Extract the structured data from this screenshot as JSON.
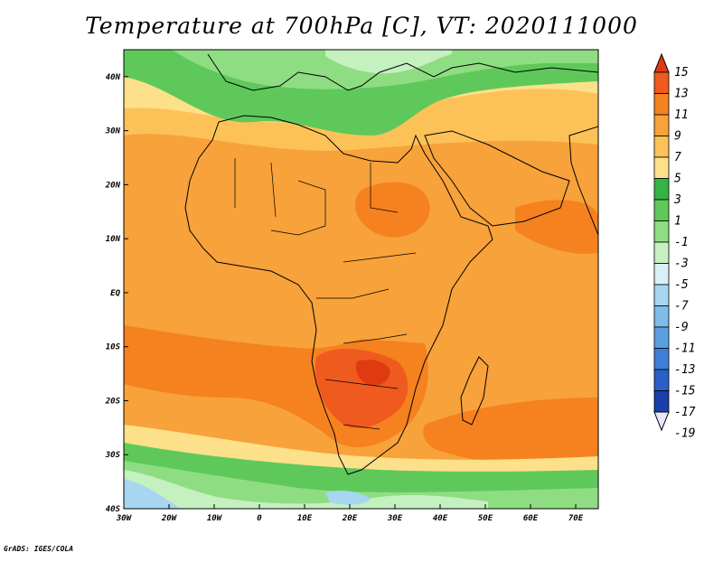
{
  "title": "Temperature at 700hPa [C], VT: 2020111000",
  "credit": "GrADS: IGES/COLA",
  "map": {
    "lat_ticks": [
      "40N",
      "30N",
      "20N",
      "10N",
      "EQ",
      "10S",
      "20S",
      "30S",
      "40S"
    ],
    "lon_ticks": [
      "30W",
      "20W",
      "10W",
      "0",
      "10E",
      "20E",
      "30E",
      "40E",
      "50E",
      "60E",
      "70E"
    ],
    "lat_range": [
      -40,
      45
    ],
    "lon_range": [
      -30,
      75
    ],
    "base_color": "#f7a23a"
  },
  "colorbar": {
    "labels": [
      "15",
      "13",
      "11",
      "9",
      "7",
      "5",
      "3",
      "1",
      "-1",
      "-3",
      "-5",
      "-7",
      "-9",
      "-11",
      "-13",
      "-15",
      "-17",
      "-19"
    ],
    "colors": [
      "#e03a12",
      "#ef5a1e",
      "#f5821f",
      "#f7a23a",
      "#fcc258",
      "#fde08a",
      "#35b345",
      "#5ec95a",
      "#8fdd82",
      "#c5f0c0",
      "#d8f0f6",
      "#a8d6f0",
      "#7fbce9",
      "#5b9fe2",
      "#3d7fd8",
      "#2a5fc6",
      "#1c3ea9",
      "#0f1f80"
    ]
  }
}
